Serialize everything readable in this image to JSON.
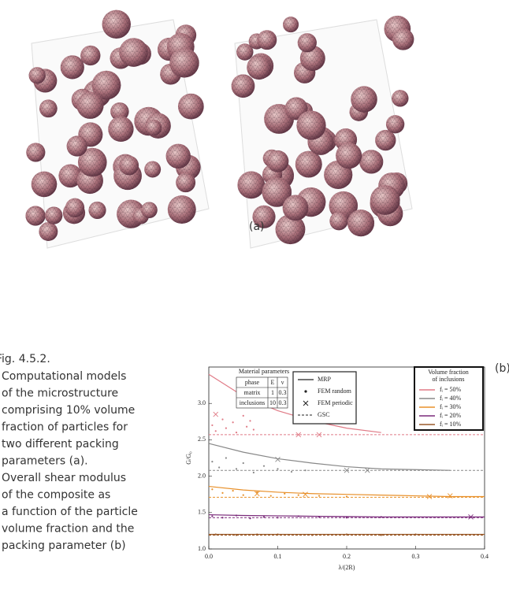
{
  "caption": {
    "title": "Fig. 4.5.2.",
    "lines": [
      "Computational models",
      "of the microstructure",
      "comprising 10% volume",
      "fraction of particles for",
      "two different packing",
      "parameters (a).",
      "Overall shear modulus",
      "of the composite as",
      "a function of the particle",
      "volume fraction and the",
      "packing parameter (b)"
    ]
  },
  "figure_labels": {
    "a": "(a)",
    "b": "(b)"
  },
  "chart_data": {
    "type": "line",
    "xlabel": "λ/(2R)",
    "ylabel": "G/G₀",
    "xlim": [
      0,
      0.4
    ],
    "ylim": [
      1.0,
      3.5
    ],
    "xticks": [
      {
        "value": 0,
        "label": "0.0"
      },
      0.1,
      0.2,
      0.3,
      0.4
    ],
    "yticks": [
      {
        "value": 1,
        "label": "1.0"
      },
      1.5,
      {
        "value": 2,
        "label": "2.0"
      },
      2.5,
      {
        "value": 3,
        "label": "3.0"
      }
    ],
    "material_table": {
      "title": "Material parameters",
      "header": [
        "phase",
        "E",
        "ν"
      ],
      "rows": [
        [
          "matrix",
          1,
          0.3
        ],
        [
          "inclusions",
          10,
          0.3
        ]
      ]
    },
    "methods": [
      {
        "label": "MRP",
        "style": "solid"
      },
      {
        "label": "FEM random",
        "style": "dot"
      },
      {
        "label": "FEM periodic",
        "style": "cross"
      },
      {
        "label": "GSC",
        "style": "dashed"
      }
    ],
    "legend_title": [
      "Volume fraction",
      "of inclusions"
    ],
    "x": [
      0,
      0.05,
      0.1,
      0.15,
      0.2,
      0.25,
      0.3,
      0.35,
      0.4
    ],
    "series": [
      {
        "name": "fᵢ = 50%",
        "color": "#e07a86",
        "values": [
          3.4,
          3.1,
          2.9,
          2.76,
          2.66,
          2.6,
          null,
          null,
          null
        ],
        "gsc": 2.57,
        "fem_random": {
          "x": [
            0.005,
            0.01,
            0.02,
            0.025,
            0.035,
            0.04,
            0.05,
            0.055,
            0.06,
            0.065
          ],
          "y": [
            2.7,
            2.62,
            2.78,
            2.66,
            2.74,
            2.6,
            2.83,
            2.68,
            2.76,
            2.64
          ]
        },
        "fem_periodic": {
          "x": [
            0.01,
            0.13,
            0.16
          ],
          "y": [
            2.85,
            2.57,
            2.57
          ]
        }
      },
      {
        "name": "fᵢ = 40%",
        "color": "#888888",
        "values": [
          2.45,
          2.33,
          2.24,
          2.18,
          2.13,
          2.1,
          2.09,
          2.08,
          null
        ],
        "gsc": 2.08,
        "fem_random": {
          "x": [
            0.005,
            0.015,
            0.025,
            0.04,
            0.05,
            0.065,
            0.08,
            0.1,
            0.12,
            0.14
          ],
          "y": [
            2.2,
            2.12,
            2.25,
            2.1,
            2.18,
            2.05,
            2.14,
            2.1,
            2.06,
            2.08
          ]
        },
        "fem_periodic": {
          "x": [
            0.1,
            0.2,
            0.23
          ],
          "y": [
            2.23,
            2.08,
            2.08
          ]
        }
      },
      {
        "name": "fᵢ = 30%",
        "color": "#e8902a",
        "values": [
          1.86,
          1.81,
          1.78,
          1.76,
          1.75,
          1.74,
          1.73,
          1.72,
          1.72
        ],
        "gsc": 1.71,
        "fem_random": {
          "x": [
            0.005,
            0.02,
            0.035,
            0.05,
            0.07,
            0.09,
            0.11,
            0.13,
            0.16,
            0.2
          ],
          "y": [
            1.82,
            1.77,
            1.8,
            1.74,
            1.78,
            1.73,
            1.76,
            1.74,
            1.73,
            1.72
          ]
        },
        "fem_periodic": {
          "x": [
            0.07,
            0.14,
            0.32,
            0.35
          ],
          "y": [
            1.76,
            1.75,
            1.72,
            1.73
          ]
        }
      },
      {
        "name": "fᵢ = 20%",
        "color": "#7a2a7a",
        "values": [
          1.47,
          1.46,
          1.455,
          1.45,
          1.445,
          1.44,
          1.44,
          1.44,
          1.44
        ],
        "gsc": 1.43,
        "fem_random": {
          "x": [
            0.005,
            0.02,
            0.04,
            0.06,
            0.08,
            0.1,
            0.13,
            0.16,
            0.2,
            0.25
          ],
          "y": [
            1.45,
            1.43,
            1.46,
            1.42,
            1.44,
            1.43,
            1.45,
            1.44,
            1.43,
            1.44
          ]
        },
        "fem_periodic": {
          "x": [
            0.38
          ],
          "y": [
            1.44
          ]
        }
      },
      {
        "name": "fᵢ = 10%",
        "color": "#9a5a2a",
        "values": [
          1.2,
          1.2,
          1.2,
          1.2,
          1.2,
          1.2,
          1.2,
          1.2,
          1.2
        ],
        "gsc": 1.19,
        "fem_random": {
          "x": [
            0.01,
            0.04,
            0.07,
            0.1,
            0.15,
            0.2,
            0.25,
            0.3
          ],
          "y": [
            1.2,
            1.19,
            1.2,
            1.2,
            1.19,
            1.2,
            1.19,
            1.2
          ]
        },
        "fem_periodic": {
          "x": [],
          "y": []
        }
      }
    ]
  }
}
